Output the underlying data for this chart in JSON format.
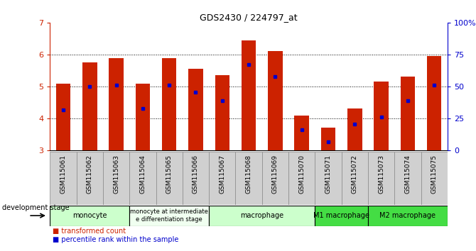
{
  "title": "GDS2430 / 224797_at",
  "samples": [
    "GSM115061",
    "GSM115062",
    "GSM115063",
    "GSM115064",
    "GSM115065",
    "GSM115066",
    "GSM115067",
    "GSM115068",
    "GSM115069",
    "GSM115070",
    "GSM115071",
    "GSM115072",
    "GSM115073",
    "GSM115074",
    "GSM115075"
  ],
  "bar_values": [
    5.1,
    5.75,
    5.9,
    5.1,
    5.9,
    5.55,
    5.35,
    6.45,
    6.1,
    4.1,
    3.72,
    4.32,
    5.15,
    5.32,
    5.95
  ],
  "blue_dot_values": [
    4.28,
    5.0,
    5.05,
    4.32,
    5.05,
    4.82,
    4.55,
    5.7,
    5.32,
    3.65,
    3.28,
    3.83,
    4.05,
    4.55,
    5.05
  ],
  "bar_bottom": 3.0,
  "ylim": [
    3.0,
    7.0
  ],
  "y_left_ticks": [
    3,
    4,
    5,
    6,
    7
  ],
  "y_right_ticks": [
    0,
    25,
    50,
    75,
    100
  ],
  "bar_color": "#cc2200",
  "blue_dot_color": "#0000cc",
  "bg_color": "#ffffff",
  "left_axis_color": "#cc2200",
  "right_axis_color": "#0000cc",
  "groups": [
    {
      "label": "monocyte",
      "start": 0,
      "end": 2,
      "color": "#ccffcc"
    },
    {
      "label": "monocyte at intermediate\ne differentiation stage",
      "start": 3,
      "end": 5,
      "color": "#f0fff0"
    },
    {
      "label": "macrophage",
      "start": 6,
      "end": 9,
      "color": "#ccffcc"
    },
    {
      "label": "M1 macrophage",
      "start": 10,
      "end": 11,
      "color": "#44dd44"
    },
    {
      "label": "M2 macrophage",
      "start": 12,
      "end": 14,
      "color": "#44dd44"
    }
  ],
  "figsize": [
    6.7,
    3.54
  ],
  "dpi": 100
}
